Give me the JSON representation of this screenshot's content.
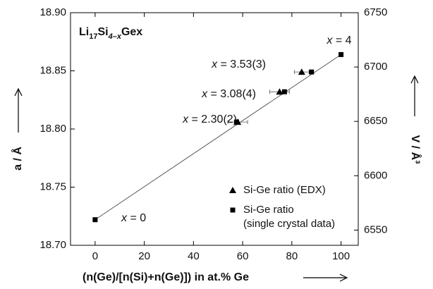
{
  "chart_data": {
    "type": "scatter",
    "title": "Li17Si4–xGex",
    "x_label": "(n(Ge)/[n(Si)+n(Ge)]) in at.% Ge",
    "y_label": "a / Å",
    "y2_label": "V / Å³",
    "xlim": [
      -10,
      107
    ],
    "xticks": [
      0,
      20,
      40,
      60,
      80,
      100
    ],
    "ylim": [
      18.7,
      18.9
    ],
    "yticks": [
      {
        "value": 18.7,
        "label": "18.70"
      },
      18.75,
      {
        "value": 18.8,
        "label": "18.80"
      },
      18.85,
      {
        "value": 18.9,
        "label": "18.90"
      }
    ],
    "y2lim": [
      6536,
      6750
    ],
    "y2ticks": [
      6550,
      6600,
      6650,
      6700,
      6750
    ],
    "series": [
      {
        "name": "Si-Ge ratio (EDX)",
        "marker": "triangle",
        "color": "#000000",
        "x": [
          58,
          75,
          84
        ],
        "values": [
          18.806,
          18.832,
          18.849
        ],
        "xerr": [
          4,
          4,
          3
        ]
      },
      {
        "name": "Si-Ge ratio (single crystal data)",
        "marker": "square",
        "color": "#000000",
        "x": [
          0,
          57.5,
          77,
          88,
          100
        ],
        "values": [
          18.722,
          18.806,
          18.832,
          18.849,
          18.864
        ]
      }
    ],
    "fit": {
      "x": [
        0,
        100
      ],
      "values": [
        18.722,
        18.864
      ]
    },
    "annotations": [
      "x = 4",
      "x = 3.53(3)",
      "x = 3.08(4)",
      "x = 2.30(2)",
      "x = 0"
    ]
  }
}
